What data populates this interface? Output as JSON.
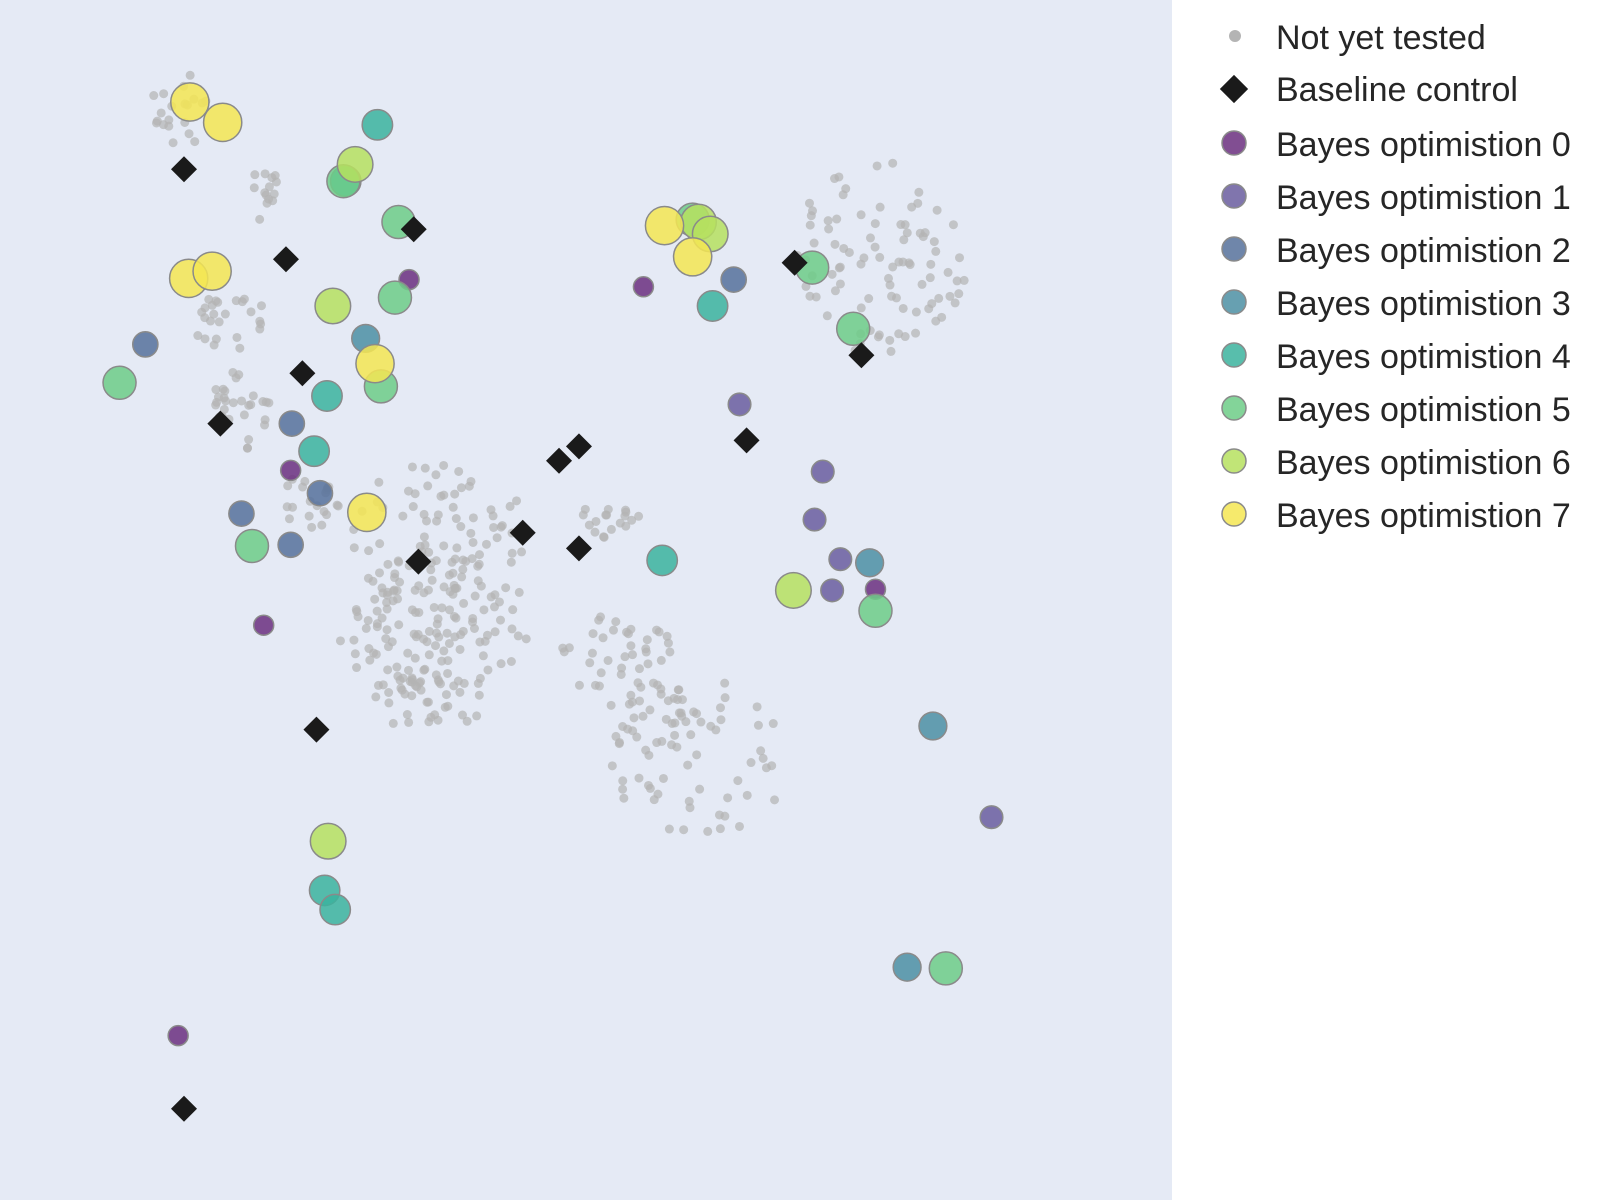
{
  "colors": {
    "plot_background": "#e5eaf5",
    "untested": "#b4b4b4",
    "baseline": "#1a1a1a",
    "marker_edge": "#8a8a8a",
    "iterations": [
      "#6b2f7f",
      "#6a5d9f",
      "#56719b",
      "#4c8fa3",
      "#3bb39e",
      "#6dcc87",
      "#b6e05f",
      "#f4e652"
    ]
  },
  "legend": {
    "placement": "right",
    "untested_label": "Not yet tested",
    "baseline_label": "Baseline control",
    "iteration_labels": [
      "Bayes optimistion 0",
      "Bayes optimistion 1",
      "Bayes optimistion 2",
      "Bayes optimistion 3",
      "Bayes optimistion 4",
      "Bayes optimistion 5",
      "Bayes optimistion 6",
      "Bayes optimistion 7"
    ]
  },
  "chart_data": {
    "type": "scatter",
    "title": "",
    "xlabel": "",
    "ylabel": "",
    "axes_visible": false,
    "grid": false,
    "xlim": [
      0,
      1000
    ],
    "ylim": [
      0,
      1000
    ],
    "baseline": [
      [
        157,
        859
      ],
      [
        244,
        784
      ],
      [
        258,
        689
      ],
      [
        188,
        647
      ],
      [
        353,
        809
      ],
      [
        357,
        532
      ],
      [
        270,
        392
      ],
      [
        157,
        76
      ],
      [
        446,
        556
      ],
      [
        477,
        616
      ],
      [
        494,
        628
      ],
      [
        494,
        543
      ],
      [
        678,
        781
      ],
      [
        735,
        704
      ],
      [
        637,
        633
      ]
    ],
    "tested": [
      {
        "name": "Bayes optimistion 0",
        "iteration": 0,
        "points": [
          [
            349,
            767
          ],
          [
            248,
            608
          ],
          [
            225,
            479
          ],
          [
            549,
            761
          ],
          [
            747,
            509
          ],
          [
            152,
            137
          ]
        ]
      },
      {
        "name": "Bayes optimistion 1",
        "iteration": 1,
        "points": [
          [
            631,
            663
          ],
          [
            702,
            607
          ],
          [
            695,
            567
          ],
          [
            717,
            534
          ],
          [
            710,
            508
          ],
          [
            846,
            319
          ]
        ]
      },
      {
        "name": "Bayes optimistion 2",
        "iteration": 2,
        "points": [
          [
            124,
            713
          ],
          [
            249,
            647
          ],
          [
            273,
            589
          ],
          [
            206,
            572
          ],
          [
            248,
            546
          ],
          [
            626,
            767
          ]
        ]
      },
      {
        "name": "Bayes optimistion 3",
        "iteration": 3,
        "points": [
          [
            312,
            718
          ],
          [
            742,
            531
          ],
          [
            796,
            395
          ],
          [
            774,
            194
          ]
        ]
      },
      {
        "name": "Bayes optimistion 4",
        "iteration": 4,
        "points": [
          [
            322,
            896
          ],
          [
            295,
            849
          ],
          [
            279,
            670
          ],
          [
            268,
            624
          ],
          [
            608,
            745
          ],
          [
            565,
            533
          ],
          [
            277,
            258
          ],
          [
            286,
            242
          ]
        ]
      },
      {
        "name": "Bayes optimistion 5",
        "iteration": 5,
        "points": [
          [
            337,
            752
          ],
          [
            325,
            678
          ],
          [
            102,
            681
          ],
          [
            215,
            545
          ],
          [
            693,
            777
          ],
          [
            728,
            726
          ],
          [
            747,
            491
          ],
          [
            807,
            193
          ],
          [
            591,
            817
          ],
          [
            340,
            815
          ],
          [
            293,
            849
          ]
        ]
      },
      {
        "name": "Bayes optimistion 6",
        "iteration": 6,
        "points": [
          [
            284,
            745
          ],
          [
            677,
            508
          ],
          [
            280,
            299
          ],
          [
            303,
            863
          ],
          [
            596,
            815
          ],
          [
            606,
            805
          ]
        ]
      },
      {
        "name": "Bayes optimistion 7",
        "iteration": 7,
        "points": [
          [
            162,
            915
          ],
          [
            190,
            898
          ],
          [
            161,
            768
          ],
          [
            181,
            774
          ],
          [
            313,
            573
          ],
          [
            320,
            697
          ],
          [
            567,
            812
          ],
          [
            591,
            786
          ]
        ]
      }
    ]
  }
}
